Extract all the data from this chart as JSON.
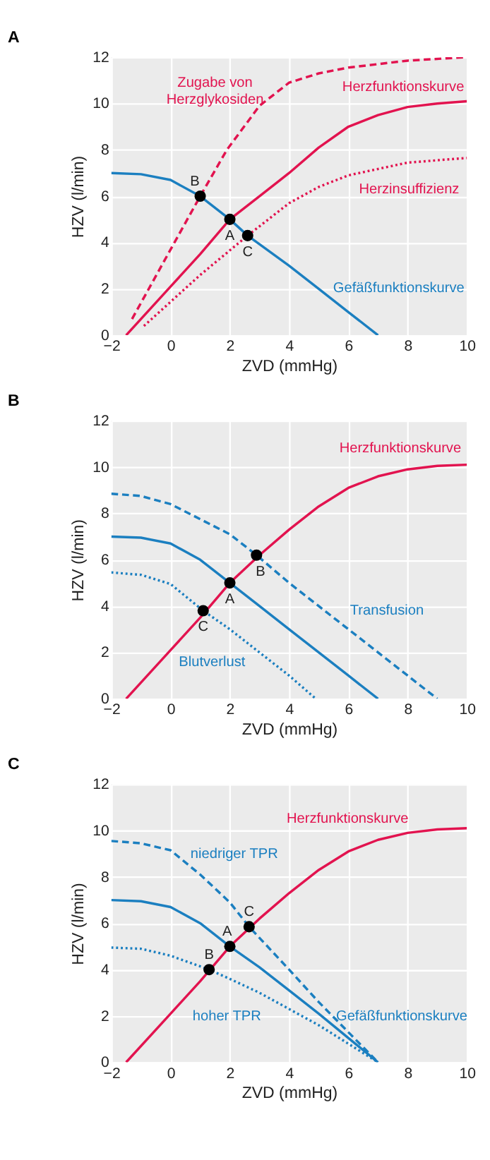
{
  "chart_data": [
    {
      "type": "line",
      "title": "A",
      "xlabel": "ZVD (mmHg)",
      "ylabel": "HZV (l/min)",
      "xlim": [
        -2,
        10
      ],
      "ylim": [
        0,
        12
      ],
      "xticks": [
        -2,
        0,
        2,
        4,
        6,
        8,
        10
      ],
      "yticks": [
        0,
        2,
        4,
        6,
        8,
        10,
        12
      ],
      "grid": true,
      "series": [
        {
          "name": "Herzfunktionskurve",
          "color": "#e2134f",
          "line_style": "solid",
          "x": [
            -1.5,
            0,
            1,
            2,
            3,
            4,
            5,
            6,
            7,
            8,
            9,
            10
          ],
          "values": [
            0,
            2.1,
            3.5,
            5,
            6,
            7,
            8.1,
            9,
            9.5,
            9.85,
            10,
            10.1
          ]
        },
        {
          "name": "Zugabe von\nHerzglykosiden",
          "color": "#e2134f",
          "line_style": "dashed",
          "x": [
            -1.3,
            0,
            1,
            1.9,
            3,
            4,
            5,
            6,
            8,
            10
          ],
          "values": [
            0.7,
            3.7,
            6,
            8,
            9.9,
            10.9,
            11.3,
            11.55,
            11.85,
            12
          ]
        },
        {
          "name": "Herzinsuffizienz",
          "color": "#e2134f",
          "line_style": "dotted",
          "x": [
            -0.9,
            1,
            2.6,
            4,
            5,
            6,
            8,
            10
          ],
          "values": [
            0.4,
            2.6,
            4.3,
            5.7,
            6.4,
            6.9,
            7.45,
            7.65
          ]
        },
        {
          "name": "Gefäßfunktionskurve",
          "color": "#1b7fc0",
          "line_style": "solid",
          "x": [
            -2,
            -1,
            0,
            1,
            2,
            2.6,
            4,
            5,
            6,
            7
          ],
          "values": [
            7,
            6.95,
            6.7,
            6,
            5,
            4.3,
            3,
            2,
            1,
            0
          ]
        },
        {
          "type": "scatter",
          "color": "#000000",
          "marker": "circle",
          "x": [
            1,
            2,
            2.6
          ],
          "values": [
            6,
            5,
            4.3
          ]
        }
      ],
      "annotations": [
        {
          "text": "B",
          "x": 1,
          "y": 6
        },
        {
          "text": "A",
          "x": 2,
          "y": 5
        },
        {
          "text": "C",
          "x": 2.6,
          "y": 4.3
        }
      ]
    },
    {
      "type": "line",
      "title": "B",
      "xlabel": "ZVD (mmHg)",
      "ylabel": "HZV (l/min)",
      "xlim": [
        -2,
        10
      ],
      "ylim": [
        0,
        12
      ],
      "xticks": [
        -2,
        0,
        2,
        4,
        6,
        8,
        10
      ],
      "yticks": [
        0,
        2,
        4,
        6,
        8,
        10,
        12
      ],
      "grid": true,
      "series": [
        {
          "name": "Herzfunktionskurve",
          "color": "#e2134f",
          "line_style": "solid",
          "x": [
            -1.5,
            0,
            1,
            2,
            3,
            4,
            5,
            6,
            7,
            8,
            9,
            10
          ],
          "values": [
            0,
            2.1,
            3.5,
            5,
            6.2,
            7.3,
            8.3,
            9.1,
            9.6,
            9.9,
            10.05,
            10.1
          ]
        },
        {
          "name": "Transfusion",
          "color": "#1b7fc0",
          "line_style": "dashed",
          "x": [
            -2,
            -1,
            0,
            1,
            2,
            2.9,
            4,
            5,
            6,
            7,
            8,
            9
          ],
          "values": [
            8.85,
            8.75,
            8.4,
            7.75,
            7.1,
            6.2,
            5,
            4,
            3,
            2,
            1,
            0
          ]
        },
        {
          "color": "#1b7fc0",
          "line_style": "solid",
          "x": [
            -2,
            -1,
            0,
            1,
            2,
            3,
            4,
            5,
            6,
            7
          ],
          "values": [
            7,
            6.95,
            6.7,
            6,
            5,
            4,
            3,
            2,
            1,
            0
          ]
        },
        {
          "name": "Blutverlust",
          "color": "#1b7fc0",
          "line_style": "dotted",
          "x": [
            -2,
            -1,
            0,
            1.1,
            2,
            3,
            4,
            4.9
          ],
          "values": [
            5.45,
            5.35,
            4.95,
            3.8,
            3,
            2,
            1,
            0
          ]
        },
        {
          "type": "scatter",
          "color": "#000000",
          "marker": "circle",
          "x": [
            2,
            2.9,
            1.1
          ],
          "values": [
            5,
            6.2,
            3.8
          ]
        }
      ],
      "annotations": [
        {
          "text": "A",
          "x": 2,
          "y": 5
        },
        {
          "text": "B",
          "x": 2.9,
          "y": 6.2
        },
        {
          "text": "C",
          "x": 1.1,
          "y": 3.8
        }
      ]
    },
    {
      "type": "line",
      "title": "C",
      "xlabel": "ZVD (mmHg)",
      "ylabel": "HZV (l/min)",
      "xlim": [
        -2,
        10
      ],
      "ylim": [
        0,
        12
      ],
      "xticks": [
        -2,
        0,
        2,
        4,
        6,
        8,
        10
      ],
      "yticks": [
        0,
        2,
        4,
        6,
        8,
        10,
        12
      ],
      "grid": true,
      "series": [
        {
          "name": "Herzfunktionskurve",
          "color": "#e2134f",
          "line_style": "solid",
          "x": [
            -1.5,
            0,
            1,
            2,
            3,
            4,
            5,
            6,
            7,
            8,
            9,
            10
          ],
          "values": [
            0,
            2.1,
            3.5,
            5,
            6.2,
            7.3,
            8.3,
            9.1,
            9.6,
            9.9,
            10.05,
            10.1
          ]
        },
        {
          "name": "niedriger TPR",
          "color": "#1b7fc0",
          "line_style": "dashed",
          "x": [
            -2,
            -1,
            0,
            1,
            2,
            2.65,
            4,
            5,
            6,
            7
          ],
          "values": [
            9.55,
            9.45,
            9.15,
            8.1,
            6.9,
            5.85,
            4,
            2.6,
            1.3,
            0
          ]
        },
        {
          "name": "Gefäßfunktionskurve",
          "color": "#1b7fc0",
          "line_style": "solid",
          "x": [
            -2,
            -1,
            0,
            1,
            2,
            3,
            4,
            5,
            6,
            7
          ],
          "values": [
            7,
            6.95,
            6.7,
            6,
            5,
            4.1,
            3.1,
            2.1,
            1.05,
            0
          ]
        },
        {
          "name": "hoher TPR",
          "color": "#1b7fc0",
          "line_style": "dotted",
          "x": [
            -2,
            -1,
            0,
            1.3,
            2,
            3,
            4,
            5,
            6,
            7
          ],
          "values": [
            4.95,
            4.9,
            4.6,
            4,
            3.6,
            3,
            2.3,
            1.6,
            0.8,
            0
          ]
        },
        {
          "type": "scatter",
          "color": "#000000",
          "marker": "circle",
          "x": [
            2,
            1.3,
            2.65
          ],
          "values": [
            5,
            4,
            5.85
          ]
        }
      ],
      "annotations": [
        {
          "text": "A",
          "x": 2,
          "y": 5
        },
        {
          "text": "B",
          "x": 1.3,
          "y": 4
        },
        {
          "text": "C",
          "x": 2.65,
          "y": 5.85
        }
      ]
    }
  ]
}
